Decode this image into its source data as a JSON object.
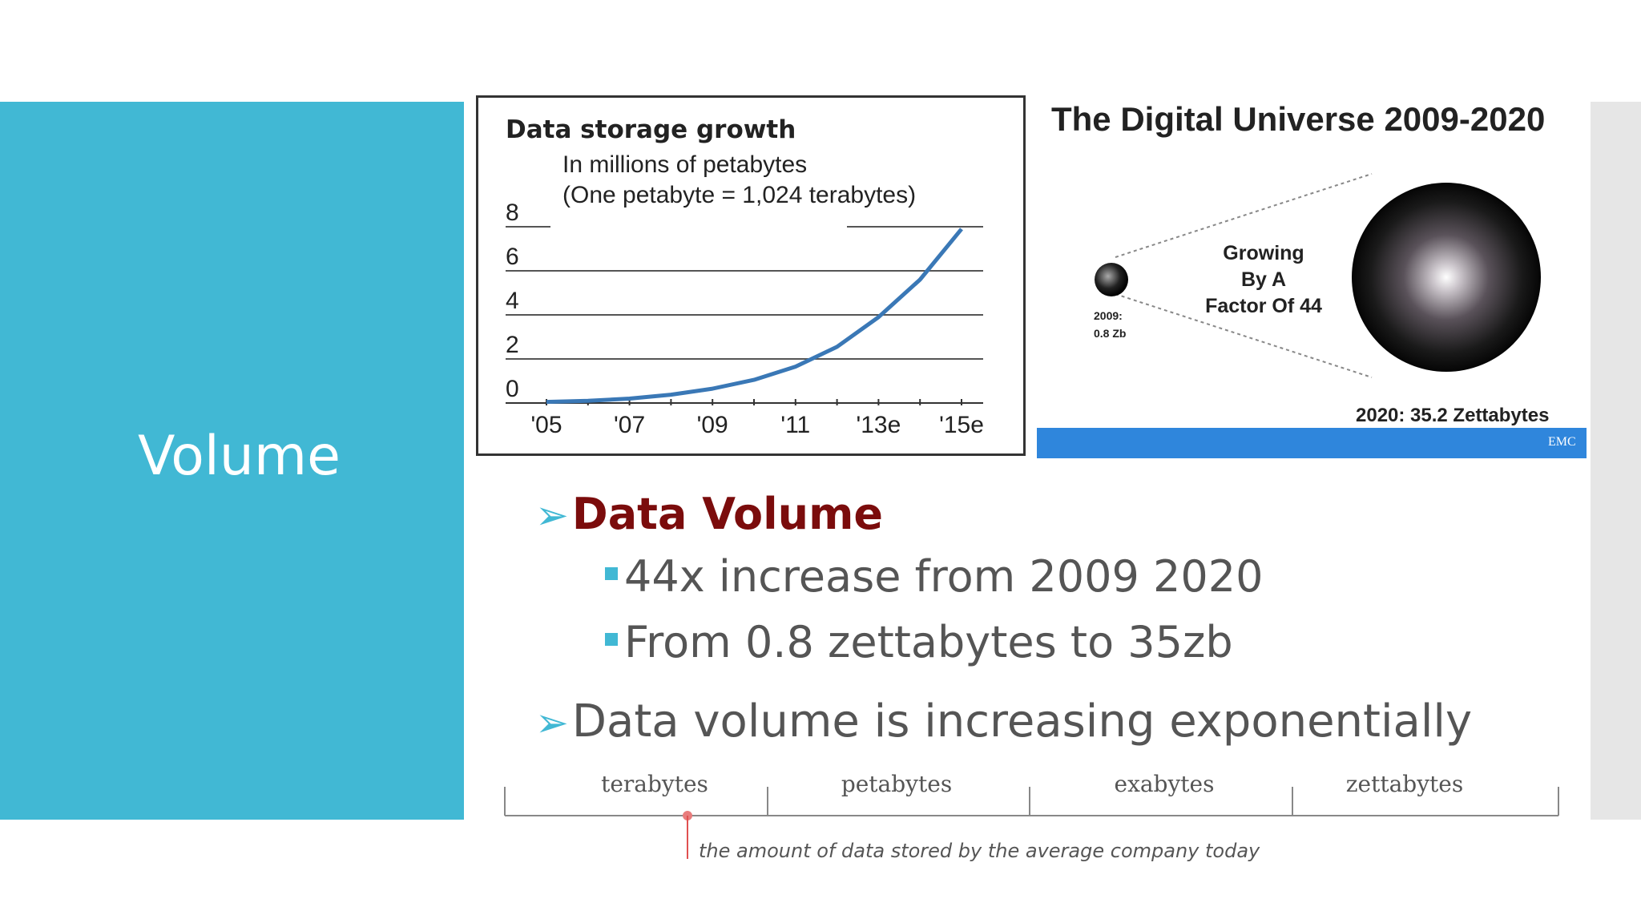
{
  "slide": {
    "title": "Volume"
  },
  "colors": {
    "accent": "#41b8d4",
    "heading": "#7b0c0c",
    "chart_line": "#3a78b6",
    "band": "#2f86dc"
  },
  "chart_data": {
    "type": "line",
    "title": "Data storage growth",
    "annotation_line1": "In millions of petabytes",
    "annotation_line2": "(One petabyte = 1,024 terabytes)",
    "x_tick_labels": [
      "'05",
      "'07",
      "'09",
      "'11",
      "'13e",
      "'15e"
    ],
    "y_tick_labels": [
      "0",
      "2",
      "4",
      "6",
      "8"
    ],
    "ylim": [
      0,
      8
    ],
    "x": [
      2005,
      2006,
      2007,
      2008,
      2009,
      2010,
      2011,
      2012,
      2013,
      2014,
      2015
    ],
    "values": [
      0.05,
      0.1,
      0.2,
      0.38,
      0.65,
      1.05,
      1.65,
      2.55,
      3.9,
      5.6,
      7.9
    ],
    "grid": true
  },
  "digital_universe": {
    "title": "The Digital Universe 2009-2020",
    "growth_line1": "Growing",
    "growth_line2": "By A",
    "growth_line3": "Factor Of 44",
    "start_line1": "2009:",
    "start_line2": "0.8 Zb",
    "end_label": "2020: 35.2 Zettabytes",
    "logo": "EMC"
  },
  "bullets": {
    "main1": "Data Volume",
    "sub1": "44x increase from 2009 2020",
    "sub2": "From 0.8 zettabytes to 35zb",
    "main2": "Data volume is increasing exponentially"
  },
  "scale": {
    "units": [
      "terabytes",
      "petabytes",
      "exabytes",
      "zettabytes"
    ],
    "caption": "the amount of data stored by the average company today"
  }
}
